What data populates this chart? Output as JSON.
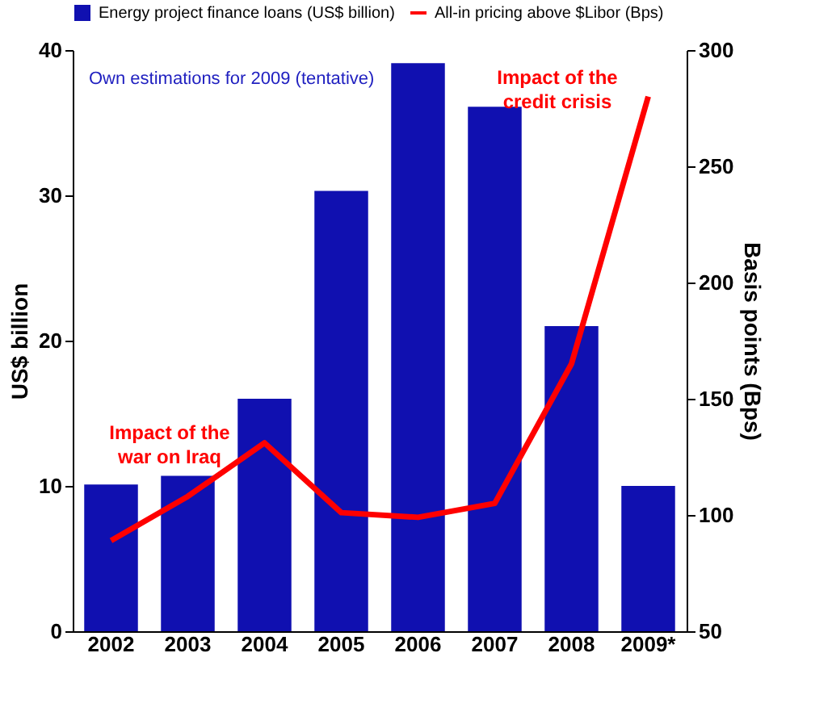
{
  "chart_data": {
    "type": "bar",
    "categories": [
      "2002",
      "2003",
      "2004",
      "2005",
      "2006",
      "2007",
      "2008",
      "2009*"
    ],
    "ylabel": "US$ billion",
    "y2label": "Basis points (Bps)",
    "ylim": [
      0,
      40
    ],
    "yticks": [
      0,
      10,
      20,
      30,
      40
    ],
    "y2lim": [
      50,
      300
    ],
    "y2ticks": [
      50,
      100,
      150,
      200,
      250,
      300
    ],
    "series": [
      {
        "name": "Energy project finance loans (US$ billion)",
        "color": "#1010b0",
        "values": [
          10.1,
          10.7,
          16,
          30.3,
          39.1,
          36.1,
          21,
          10
        ]
      },
      {
        "name": "All-in pricing above $Libor (Bps)",
        "type": "line",
        "axis": "y2",
        "color": "#ff0000",
        "values": [
          89,
          108,
          131,
          101,
          99,
          105,
          165,
          280
        ]
      }
    ],
    "annotations": [
      "Own estimations for 2009 (tentative)",
      "Impact of the\nwar on Iraq",
      "Impact of the\ncredit crisis"
    ],
    "legend": "top",
    "grid": false,
    "marker": "none",
    "line_style": "solid"
  }
}
